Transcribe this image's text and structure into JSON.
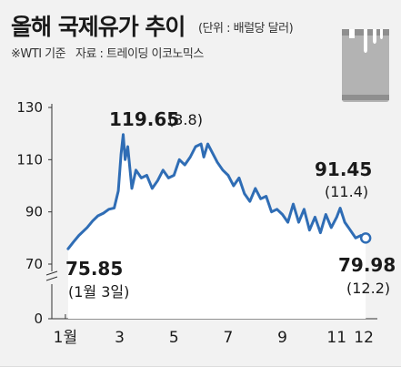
{
  "header": {
    "title": "올해 국제유가 추이",
    "unit": "(단위 : 배럴당 달러)",
    "note_left": "※WTI 기준",
    "note_source": "자료 : 트레이딩 이코노믹스"
  },
  "icons": {
    "barrel": "oil-barrel-icon"
  },
  "colors": {
    "line": "#2f6db5",
    "area": "#ffffff",
    "background": "#f2f2f2",
    "text": "#1a1a1a"
  },
  "chart_data": {
    "type": "line",
    "title": "올해 국제유가 추이",
    "ylabel": "",
    "xlabel": "",
    "ylim": [
      70,
      130
    ],
    "y_ticks": [
      130,
      110,
      90,
      70,
      0
    ],
    "x_ticks": [
      1,
      3,
      5,
      7,
      9,
      11,
      12
    ],
    "x_tick_labels": [
      "1월",
      "3",
      "5",
      "7",
      "9",
      "11",
      "12"
    ],
    "grid": false,
    "axis_break": true,
    "series": [
      {
        "x": [
          1.1,
          1.3,
          1.5,
          1.8,
          2.0,
          2.2,
          2.4,
          2.6,
          2.8,
          2.95,
          3.05,
          3.13,
          3.2,
          3.3,
          3.45,
          3.6,
          3.8,
          4.0,
          4.2,
          4.4,
          4.6,
          4.8,
          5.0,
          5.2,
          5.4,
          5.6,
          5.8,
          6.0,
          6.1,
          6.25,
          6.4,
          6.6,
          6.8,
          7.0,
          7.2,
          7.4,
          7.6,
          7.8,
          8.0,
          8.2,
          8.4,
          8.6,
          8.8,
          9.0,
          9.2,
          9.4,
          9.6,
          9.8,
          10.0,
          10.2,
          10.4,
          10.6,
          10.8,
          11.0,
          11.13,
          11.3,
          11.5,
          11.7,
          11.9,
          12.07
        ],
        "y": [
          75.85,
          78.5,
          81,
          84,
          86.5,
          88.5,
          89.5,
          91,
          91.5,
          98,
          112,
          119.65,
          110,
          115,
          99,
          106,
          103,
          104,
          99,
          102,
          106,
          103,
          104,
          110,
          108,
          111,
          115,
          116,
          111,
          116,
          113,
          109,
          106,
          104,
          100,
          103,
          97,
          94,
          99,
          95,
          96,
          90,
          91,
          89,
          86,
          93,
          86,
          91,
          83,
          88,
          82,
          89,
          84,
          88,
          91.45,
          86,
          83,
          80,
          81,
          79.98
        ]
      }
    ],
    "annotations": [
      {
        "value": "75.85",
        "date": "(1월 3일)"
      },
      {
        "value": "119.65",
        "date": "(3.8)"
      },
      {
        "value": "91.45",
        "date": "(11.4)"
      },
      {
        "value": "79.98",
        "date": "(12.2)"
      }
    ]
  }
}
